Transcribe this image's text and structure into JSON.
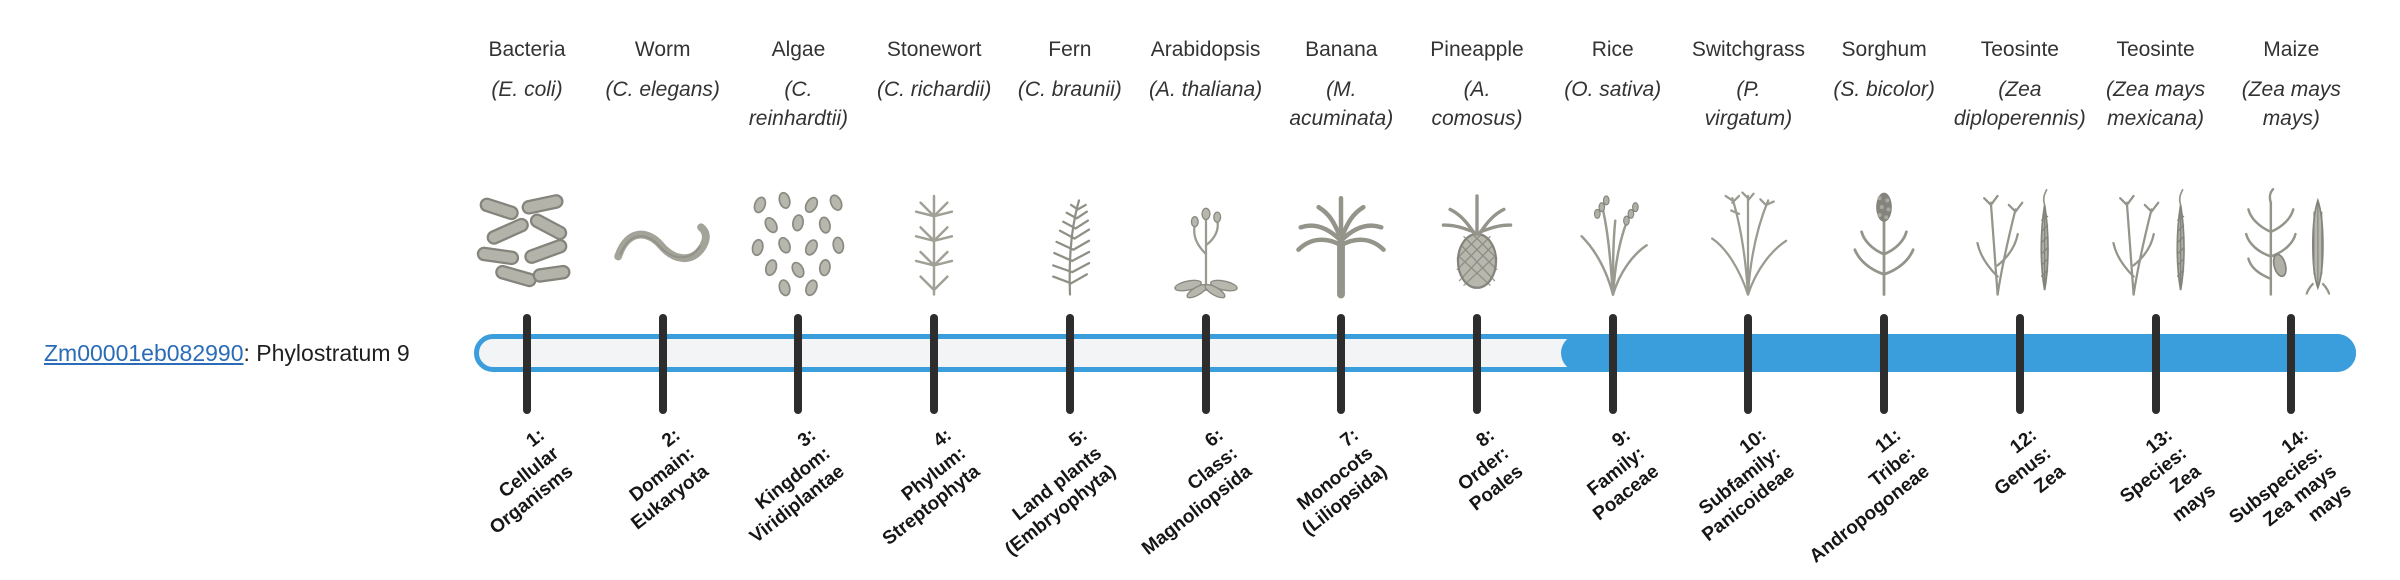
{
  "gene": {
    "id": "Zm00001eb082990",
    "suffix": ": Phylostratum 9"
  },
  "timeline": {
    "accent": "#3b9edc",
    "track": "#f2f4f6",
    "tick_color": "#2d2d2d",
    "filled_from_stratum": 9
  },
  "organisms": [
    {
      "name": "Bacteria",
      "sci": "(E. coli)",
      "icon": "bacteria"
    },
    {
      "name": "Worm",
      "sci": "(C. elegans)",
      "icon": "worm"
    },
    {
      "name": "Algae",
      "sci": "(C.\nreinhardtii)",
      "icon": "algae"
    },
    {
      "name": "Stonewort",
      "sci": "(C. richardii)",
      "icon": "stonewort"
    },
    {
      "name": "Fern",
      "sci": "(C. braunii)",
      "icon": "fern"
    },
    {
      "name": "Arabidopsis",
      "sci": "(A. thaliana)",
      "icon": "arabidopsis"
    },
    {
      "name": "Banana",
      "sci": "(M.\nacuminata)",
      "icon": "banana"
    },
    {
      "name": "Pineapple",
      "sci": "(A.\ncomosus)",
      "icon": "pineapple"
    },
    {
      "name": "Rice",
      "sci": "(O. sativa)",
      "icon": "rice"
    },
    {
      "name": "Switchgrass",
      "sci": "(P.\nvirgatum)",
      "icon": "switchgrass"
    },
    {
      "name": "Sorghum",
      "sci": "(S. bicolor)",
      "icon": "sorghum"
    },
    {
      "name": "Teosinte",
      "sci": "(Zea\ndiploperennis)",
      "icon": "teosinte"
    },
    {
      "name": "Teosinte",
      "sci": "(Zea mays\nmexicana)",
      "icon": "teosinte"
    },
    {
      "name": "Maize",
      "sci": "(Zea mays\nmays)",
      "icon": "maize"
    }
  ],
  "phylostrata": [
    {
      "label": "1:\nCellular\nOrganisms"
    },
    {
      "label": "2:\nDomain:\nEukaryota"
    },
    {
      "label": "3:\nKingdom:\nViridiplantae"
    },
    {
      "label": "4:\nPhylum:\nStreptophyta"
    },
    {
      "label": "5:\nLand plants\n(Embryophyta)"
    },
    {
      "label": "6:\nClass:\nMagnoliopsida"
    },
    {
      "label": "7:\nMonocots\n(Liliopsida)"
    },
    {
      "label": "8:\nOrder:\nPoales"
    },
    {
      "label": "9:\nFamily:\nPoaceae"
    },
    {
      "label": "10:\nSubfamily:\nPanicoideae"
    },
    {
      "label": "11:\nTribe:\nAndropogoneae"
    },
    {
      "label": "12:\nGenus:\nZea"
    },
    {
      "label": "13:\nSpecies:\nZea\nmays"
    },
    {
      "label": "14:\nSubspecies:\nZea mays\nmays"
    }
  ]
}
